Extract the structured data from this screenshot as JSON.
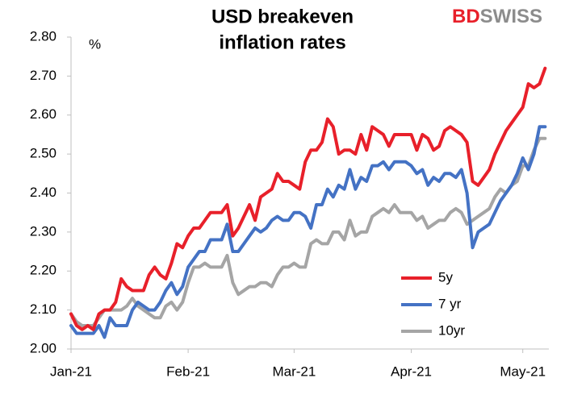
{
  "chart_data": {
    "type": "line",
    "title": [
      "USD breakeven",
      "inflation rates"
    ],
    "unit_label": "%",
    "logo": [
      "BD",
      "SWISS"
    ],
    "categories": [
      "Jan-21",
      null,
      null,
      null,
      null,
      null,
      null,
      null,
      null,
      null,
      null,
      null,
      null,
      null,
      null,
      null,
      null,
      null,
      null,
      null,
      null,
      "Feb-21",
      null,
      null,
      null,
      null,
      null,
      null,
      null,
      null,
      null,
      null,
      null,
      null,
      null,
      null,
      null,
      null,
      null,
      null,
      "Mar-21",
      null,
      null,
      null,
      null,
      null,
      null,
      null,
      null,
      null,
      null,
      null,
      null,
      null,
      null,
      null,
      null,
      null,
      null,
      null,
      null,
      "Apr-21",
      null,
      null,
      null,
      null,
      null,
      null,
      null,
      null,
      null,
      null,
      null,
      null,
      null,
      null,
      null,
      null,
      null,
      null,
      null,
      "May-21",
      null,
      null,
      null,
      null
    ],
    "series": [
      {
        "name": "5y",
        "color": "#e8202a",
        "values": [
          2.09,
          2.06,
          2.05,
          2.06,
          2.05,
          2.09,
          2.1,
          2.1,
          2.12,
          2.18,
          2.16,
          2.15,
          2.15,
          2.15,
          2.19,
          2.21,
          2.19,
          2.18,
          2.22,
          2.27,
          2.26,
          2.29,
          2.31,
          2.31,
          2.33,
          2.35,
          2.35,
          2.35,
          2.37,
          2.29,
          2.31,
          2.34,
          2.37,
          2.33,
          2.39,
          2.4,
          2.41,
          2.45,
          2.43,
          2.43,
          2.42,
          2.41,
          2.48,
          2.51,
          2.51,
          2.53,
          2.59,
          2.57,
          2.5,
          2.51,
          2.51,
          2.5,
          2.55,
          2.51,
          2.57,
          2.56,
          2.55,
          2.52,
          2.55,
          2.55,
          2.55,
          2.55,
          2.51,
          2.55,
          2.54,
          2.51,
          2.52,
          2.56,
          2.57,
          2.56,
          2.55,
          2.53,
          2.43,
          2.42,
          2.44,
          2.46,
          2.5,
          2.53,
          2.56,
          2.58,
          2.6,
          2.62,
          2.68,
          2.67,
          2.68,
          2.72
        ]
      },
      {
        "name": "7 yr",
        "color": "#4472c4",
        "values": [
          2.06,
          2.04,
          2.04,
          2.04,
          2.04,
          2.06,
          2.03,
          2.08,
          2.06,
          2.06,
          2.06,
          2.1,
          2.12,
          2.11,
          2.1,
          2.1,
          2.12,
          2.15,
          2.17,
          2.14,
          2.16,
          2.21,
          2.23,
          2.25,
          2.25,
          2.28,
          2.28,
          2.28,
          2.32,
          2.25,
          2.25,
          2.27,
          2.29,
          2.31,
          2.3,
          2.31,
          2.33,
          2.34,
          2.33,
          2.33,
          2.35,
          2.35,
          2.34,
          2.31,
          2.37,
          2.37,
          2.41,
          2.39,
          2.42,
          2.41,
          2.46,
          2.41,
          2.44,
          2.43,
          2.47,
          2.47,
          2.48,
          2.46,
          2.48,
          2.48,
          2.48,
          2.47,
          2.45,
          2.46,
          2.42,
          2.44,
          2.43,
          2.45,
          2.45,
          2.44,
          2.46,
          2.4,
          2.26,
          2.3,
          2.31,
          2.32,
          2.35,
          2.38,
          2.4,
          2.42,
          2.45,
          2.49,
          2.46,
          2.5,
          2.57,
          2.57
        ]
      },
      {
        "name": "10yr",
        "color": "#a5a5a5",
        "values": [
          2.09,
          2.07,
          2.06,
          2.06,
          2.06,
          2.08,
          2.1,
          2.1,
          2.1,
          2.1,
          2.11,
          2.13,
          2.11,
          2.1,
          2.09,
          2.08,
          2.08,
          2.11,
          2.12,
          2.1,
          2.12,
          2.17,
          2.21,
          2.21,
          2.22,
          2.21,
          2.21,
          2.21,
          2.24,
          2.17,
          2.14,
          2.15,
          2.16,
          2.16,
          2.17,
          2.17,
          2.16,
          2.19,
          2.21,
          2.21,
          2.22,
          2.21,
          2.21,
          2.27,
          2.28,
          2.27,
          2.27,
          2.3,
          2.3,
          2.28,
          2.33,
          2.29,
          2.3,
          2.3,
          2.34,
          2.35,
          2.36,
          2.35,
          2.37,
          2.35,
          2.35,
          2.35,
          2.33,
          2.34,
          2.31,
          2.32,
          2.33,
          2.33,
          2.35,
          2.36,
          2.35,
          2.32,
          2.33,
          2.34,
          2.35,
          2.36,
          2.39,
          2.41,
          2.4,
          2.42,
          2.43,
          2.47,
          2.47,
          2.51,
          2.54,
          2.54
        ]
      }
    ],
    "ylim": [
      2.0,
      2.8
    ],
    "yticks": [
      {
        "value": 2.0,
        "label": "2.00"
      },
      {
        "value": 2.1,
        "label": "2.10"
      },
      {
        "value": 2.2,
        "label": "2.20"
      },
      {
        "value": 2.3,
        "label": "2.30"
      },
      {
        "value": 2.4,
        "label": "2.40"
      },
      {
        "value": 2.5,
        "label": "2.50"
      },
      {
        "value": 2.6,
        "label": "2.60"
      },
      {
        "value": 2.7,
        "label": "2.70"
      },
      {
        "value": 2.8,
        "label": "2.80"
      }
    ],
    "grid": false,
    "legend": "lower right"
  }
}
